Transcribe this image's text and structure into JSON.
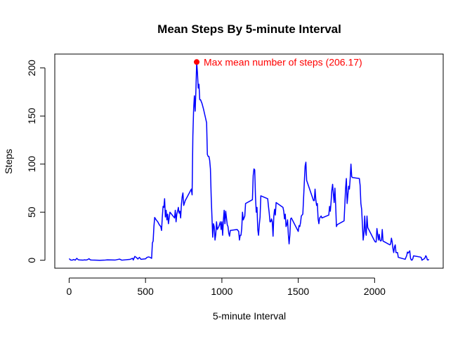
{
  "chart_data": {
    "type": "line",
    "title": "Mean Steps By 5-minute Interval",
    "xlabel": "5-minute Interval",
    "ylabel": "Steps",
    "xlim": [
      -94,
      2449
    ],
    "ylim": [
      -8.25,
      214.42
    ],
    "xticks": [
      0,
      500,
      1000,
      1500,
      2000
    ],
    "yticks": [
      0,
      50,
      100,
      150,
      200
    ],
    "line_color": "#0000ff",
    "annotation": {
      "text": "Max mean number of steps (206.17)",
      "x": 835,
      "y": 206.17,
      "color": "#ff0000"
    },
    "series": [
      {
        "values": [
          [
            0,
            1.7
          ],
          [
            10,
            0.2
          ],
          [
            20,
            0.1
          ],
          [
            30,
            0.8
          ],
          [
            40,
            0.1
          ],
          [
            50,
            2.0
          ],
          [
            60,
            0.5
          ],
          [
            70,
            0.3
          ],
          [
            90,
            0.1
          ],
          [
            100,
            0.4
          ],
          [
            110,
            0.2
          ],
          [
            120,
            0.6
          ],
          [
            130,
            1.6
          ],
          [
            140,
            0.3
          ],
          [
            150,
            0.2
          ],
          [
            200,
            0.0
          ],
          [
            230,
            0.1
          ],
          [
            250,
            0.4
          ],
          [
            300,
            0.2
          ],
          [
            330,
            1.2
          ],
          [
            345,
            0.1
          ],
          [
            400,
            1.0
          ],
          [
            415,
            2.0
          ],
          [
            420,
            0.3
          ],
          [
            430,
            4.0
          ],
          [
            440,
            2.9
          ],
          [
            450,
            1.3
          ],
          [
            460,
            3.0
          ],
          [
            470,
            1.0
          ],
          [
            500,
            1.5
          ],
          [
            510,
            3.0
          ],
          [
            520,
            3.5
          ],
          [
            530,
            3.0
          ],
          [
            540,
            2.0
          ],
          [
            545,
            18.0
          ],
          [
            550,
            20.0
          ],
          [
            555,
            35.0
          ],
          [
            560,
            44.5
          ],
          [
            570,
            42.0
          ],
          [
            580,
            40.0
          ],
          [
            590,
            37.0
          ],
          [
            600,
            35.0
          ],
          [
            605,
            31.0
          ],
          [
            610,
            45.0
          ],
          [
            615,
            56.0
          ],
          [
            620,
            55.0
          ],
          [
            625,
            64.0
          ],
          [
            630,
            45.0
          ],
          [
            635,
            52.0
          ],
          [
            640,
            42.0
          ],
          [
            645,
            48.0
          ],
          [
            650,
            38.0
          ],
          [
            660,
            50.0
          ],
          [
            670,
            48.0
          ],
          [
            680,
            46.0
          ],
          [
            690,
            44.0
          ],
          [
            695,
            52.0
          ],
          [
            700,
            40.0
          ],
          [
            705,
            48.0
          ],
          [
            710,
            51.0
          ],
          [
            715,
            55.0
          ],
          [
            720,
            49.0
          ],
          [
            725,
            51.0
          ],
          [
            730,
            44.0
          ],
          [
            735,
            58.0
          ],
          [
            740,
            66.0
          ],
          [
            745,
            70.0
          ],
          [
            750,
            57.0
          ],
          [
            760,
            62.0
          ],
          [
            770,
            65.0
          ],
          [
            780,
            68.0
          ],
          [
            790,
            71.0
          ],
          [
            800,
            74.0
          ],
          [
            805,
            68.0
          ],
          [
            810,
            129.0
          ],
          [
            815,
            157.0
          ],
          [
            820,
            171.0
          ],
          [
            825,
            155.0
          ],
          [
            830,
            177.0
          ],
          [
            835,
            206.17
          ],
          [
            840,
            195.0
          ],
          [
            845,
            179.0
          ],
          [
            850,
            183.0
          ],
          [
            855,
            167.0
          ],
          [
            860,
            167.0
          ],
          [
            870,
            163.0
          ],
          [
            880,
            157.0
          ],
          [
            890,
            150.0
          ],
          [
            900,
            143.0
          ],
          [
            905,
            110.0
          ],
          [
            910,
            108.0
          ],
          [
            915,
            108.0
          ],
          [
            920,
            104.0
          ],
          [
            925,
            95.0
          ],
          [
            930,
            66.0
          ],
          [
            935,
            45.0
          ],
          [
            940,
            24.0
          ],
          [
            945,
            38.0
          ],
          [
            950,
            35.0
          ],
          [
            955,
            21.0
          ],
          [
            960,
            27.0
          ],
          [
            965,
            40.0
          ],
          [
            970,
            32.0
          ],
          [
            980,
            35.0
          ],
          [
            990,
            40.0
          ],
          [
            995,
            32.0
          ],
          [
            1000,
            40.0
          ],
          [
            1005,
            26.0
          ],
          [
            1010,
            42.0
          ],
          [
            1015,
            52.0
          ],
          [
            1020,
            38.0
          ],
          [
            1025,
            51.0
          ],
          [
            1030,
            44.0
          ],
          [
            1035,
            37.0
          ],
          [
            1040,
            35.0
          ],
          [
            1045,
            28.0
          ],
          [
            1050,
            25.0
          ],
          [
            1055,
            31.0
          ],
          [
            1100,
            32.0
          ],
          [
            1105,
            31.0
          ],
          [
            1110,
            30.0
          ],
          [
            1115,
            21.0
          ],
          [
            1120,
            26.0
          ],
          [
            1125,
            26.0
          ],
          [
            1130,
            33.0
          ],
          [
            1135,
            50.0
          ],
          [
            1140,
            42.0
          ],
          [
            1145,
            44.0
          ],
          [
            1150,
            46.0
          ],
          [
            1155,
            59.0
          ],
          [
            1200,
            63.0
          ],
          [
            1205,
            88.0
          ],
          [
            1210,
            95.0
          ],
          [
            1215,
            94.0
          ],
          [
            1220,
            66.0
          ],
          [
            1225,
            50.0
          ],
          [
            1230,
            55.0
          ],
          [
            1235,
            32.0
          ],
          [
            1240,
            26.0
          ],
          [
            1245,
            37.0
          ],
          [
            1250,
            45.0
          ],
          [
            1255,
            67.0
          ],
          [
            1300,
            64.0
          ],
          [
            1305,
            56.0
          ],
          [
            1310,
            49.0
          ],
          [
            1315,
            40.0
          ],
          [
            1320,
            40.0
          ],
          [
            1325,
            43.0
          ],
          [
            1330,
            40.0
          ],
          [
            1335,
            25.0
          ],
          [
            1340,
            46.0
          ],
          [
            1345,
            53.0
          ],
          [
            1350,
            47.0
          ],
          [
            1355,
            60.0
          ],
          [
            1400,
            55.0
          ],
          [
            1405,
            51.0
          ],
          [
            1410,
            43.0
          ],
          [
            1415,
            48.0
          ],
          [
            1420,
            35.0
          ],
          [
            1425,
            37.0
          ],
          [
            1430,
            42.0
          ],
          [
            1435,
            27.0
          ],
          [
            1440,
            17.0
          ],
          [
            1445,
            26.0
          ],
          [
            1450,
            43.0
          ],
          [
            1455,
            44.0
          ],
          [
            1500,
            30.0
          ],
          [
            1505,
            36.0
          ],
          [
            1510,
            35.0
          ],
          [
            1515,
            39.0
          ],
          [
            1520,
            46.0
          ],
          [
            1525,
            47.0
          ],
          [
            1530,
            48.0
          ],
          [
            1535,
            65.0
          ],
          [
            1540,
            82.0
          ],
          [
            1545,
            98.0
          ],
          [
            1550,
            102.0
          ],
          [
            1555,
            83.0
          ],
          [
            1600,
            62.0
          ],
          [
            1605,
            62.0
          ],
          [
            1610,
            74.0
          ],
          [
            1615,
            63.0
          ],
          [
            1620,
            57.0
          ],
          [
            1625,
            59.0
          ],
          [
            1630,
            43.0
          ],
          [
            1635,
            38.0
          ],
          [
            1640,
            44.0
          ],
          [
            1645,
            45.0
          ],
          [
            1650,
            46.0
          ],
          [
            1655,
            44.0
          ],
          [
            1700,
            47.0
          ],
          [
            1705,
            56.0
          ],
          [
            1710,
            51.0
          ],
          [
            1715,
            61.0
          ],
          [
            1720,
            73.0
          ],
          [
            1725,
            79.0
          ],
          [
            1730,
            69.0
          ],
          [
            1735,
            60.0
          ],
          [
            1740,
            75.0
          ],
          [
            1745,
            57.0
          ],
          [
            1750,
            35.0
          ],
          [
            1755,
            37.0
          ],
          [
            1800,
            41.0
          ],
          [
            1805,
            58.0
          ],
          [
            1810,
            75.0
          ],
          [
            1815,
            85.0
          ],
          [
            1820,
            59.0
          ],
          [
            1825,
            68.0
          ],
          [
            1830,
            77.0
          ],
          [
            1835,
            74.0
          ],
          [
            1840,
            85.0
          ],
          [
            1845,
            100.0
          ],
          [
            1850,
            87.0
          ],
          [
            1855,
            86.0
          ],
          [
            1900,
            85.0
          ],
          [
            1905,
            78.0
          ],
          [
            1910,
            59.0
          ],
          [
            1915,
            53.0
          ],
          [
            1920,
            37.0
          ],
          [
            1925,
            21.0
          ],
          [
            1930,
            28.0
          ],
          [
            1935,
            46.0
          ],
          [
            1940,
            30.0
          ],
          [
            1945,
            26.0
          ],
          [
            1950,
            46.0
          ],
          [
            1955,
            34.0
          ],
          [
            2000,
            20.0
          ],
          [
            2005,
            19.0
          ],
          [
            2010,
            19.0
          ],
          [
            2015,
            33.0
          ],
          [
            2020,
            27.0
          ],
          [
            2025,
            21.0
          ],
          [
            2030,
            27.0
          ],
          [
            2035,
            21.0
          ],
          [
            2040,
            20.0
          ],
          [
            2045,
            21.0
          ],
          [
            2050,
            32.0
          ],
          [
            2055,
            20.0
          ],
          [
            2100,
            16.0
          ],
          [
            2105,
            17.0
          ],
          [
            2110,
            23.0
          ],
          [
            2115,
            19.0
          ],
          [
            2120,
            12.0
          ],
          [
            2125,
            8.0
          ],
          [
            2130,
            14.0
          ],
          [
            2135,
            16.0
          ],
          [
            2140,
            8.0
          ],
          [
            2145,
            8.0
          ],
          [
            2150,
            8.0
          ],
          [
            2155,
            3.0
          ],
          [
            2200,
            1.0
          ],
          [
            2205,
            3.0
          ],
          [
            2210,
            4.8
          ],
          [
            2215,
            8.5
          ],
          [
            2220,
            7.5
          ],
          [
            2225,
            8.7
          ],
          [
            2230,
            9.8
          ],
          [
            2235,
            2.2
          ],
          [
            2240,
            0.3
          ],
          [
            2245,
            0.1
          ],
          [
            2250,
            1.6
          ],
          [
            2255,
            4.6
          ],
          [
            2300,
            3.3
          ],
          [
            2305,
            2.8
          ],
          [
            2310,
            0.0
          ],
          [
            2315,
            0.8
          ],
          [
            2320,
            1.0
          ],
          [
            2325,
            1.6
          ],
          [
            2330,
            2.6
          ],
          [
            2335,
            4.7
          ],
          [
            2340,
            3.3
          ],
          [
            2345,
            0.6
          ],
          [
            2350,
            0.2
          ],
          [
            2355,
            1.1
          ]
        ]
      }
    ]
  }
}
